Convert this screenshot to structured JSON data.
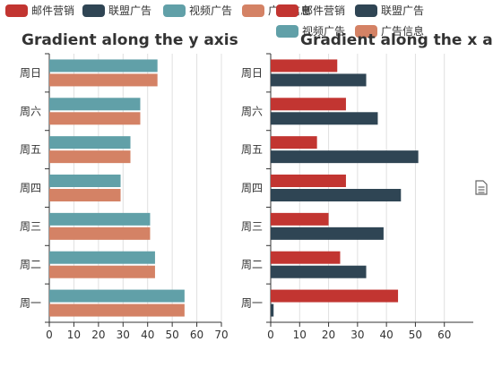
{
  "legends": [
    {
      "items": [
        {
          "name": "邮件营销",
          "color": "#c23531"
        },
        {
          "name": "联盟广告",
          "color": "#2f4554"
        },
        {
          "name": "视频广告",
          "color": "#61a0a8"
        },
        {
          "name": "广告信息",
          "color": "#d48265"
        }
      ]
    },
    {
      "items": [
        {
          "name": "邮件营销",
          "color": "#c23531"
        },
        {
          "name": "联盟广告",
          "color": "#2f4554"
        },
        {
          "name": "视频广告",
          "color": "#61a0a8"
        },
        {
          "name": "广告信息",
          "color": "#d48265"
        }
      ]
    }
  ],
  "toolbox": {
    "icon": "save-as-image-icon"
  },
  "chart_data": [
    {
      "type": "bar",
      "orientation": "horizontal",
      "title": "Gradient along the y axis",
      "categories": [
        "周一",
        "周二",
        "周三",
        "周四",
        "周五",
        "周六",
        "周日"
      ],
      "series": [
        {
          "name": "视频广告",
          "color": "#61a0a8",
          "values": [
            55,
            43,
            41,
            29,
            33,
            37,
            44
          ]
        },
        {
          "name": "广告信息",
          "color": "#d48265",
          "values": [
            55,
            43,
            41,
            29,
            33,
            37,
            44
          ]
        }
      ],
      "xlim": [
        0,
        70
      ],
      "xticks": [
        "0",
        "10",
        "20",
        "30",
        "40",
        "50",
        "60",
        "70"
      ],
      "grid": true
    },
    {
      "type": "bar",
      "orientation": "horizontal",
      "title": "Gradient along the x axis",
      "categories": [
        "周一",
        "周二",
        "周三",
        "周四",
        "周五",
        "周六",
        "周日"
      ],
      "series": [
        {
          "name": "邮件营销",
          "color": "#c23531",
          "values": [
            44,
            24,
            20,
            26,
            16,
            26,
            23
          ]
        },
        {
          "name": "联盟广告",
          "color": "#2f4554",
          "values": [
            1,
            33,
            39,
            45,
            51,
            37,
            33
          ]
        }
      ],
      "xlim": [
        0,
        70
      ],
      "xticks": [
        "0",
        "10",
        "20",
        "30",
        "40",
        "50",
        "60"
      ],
      "grid": true
    }
  ]
}
